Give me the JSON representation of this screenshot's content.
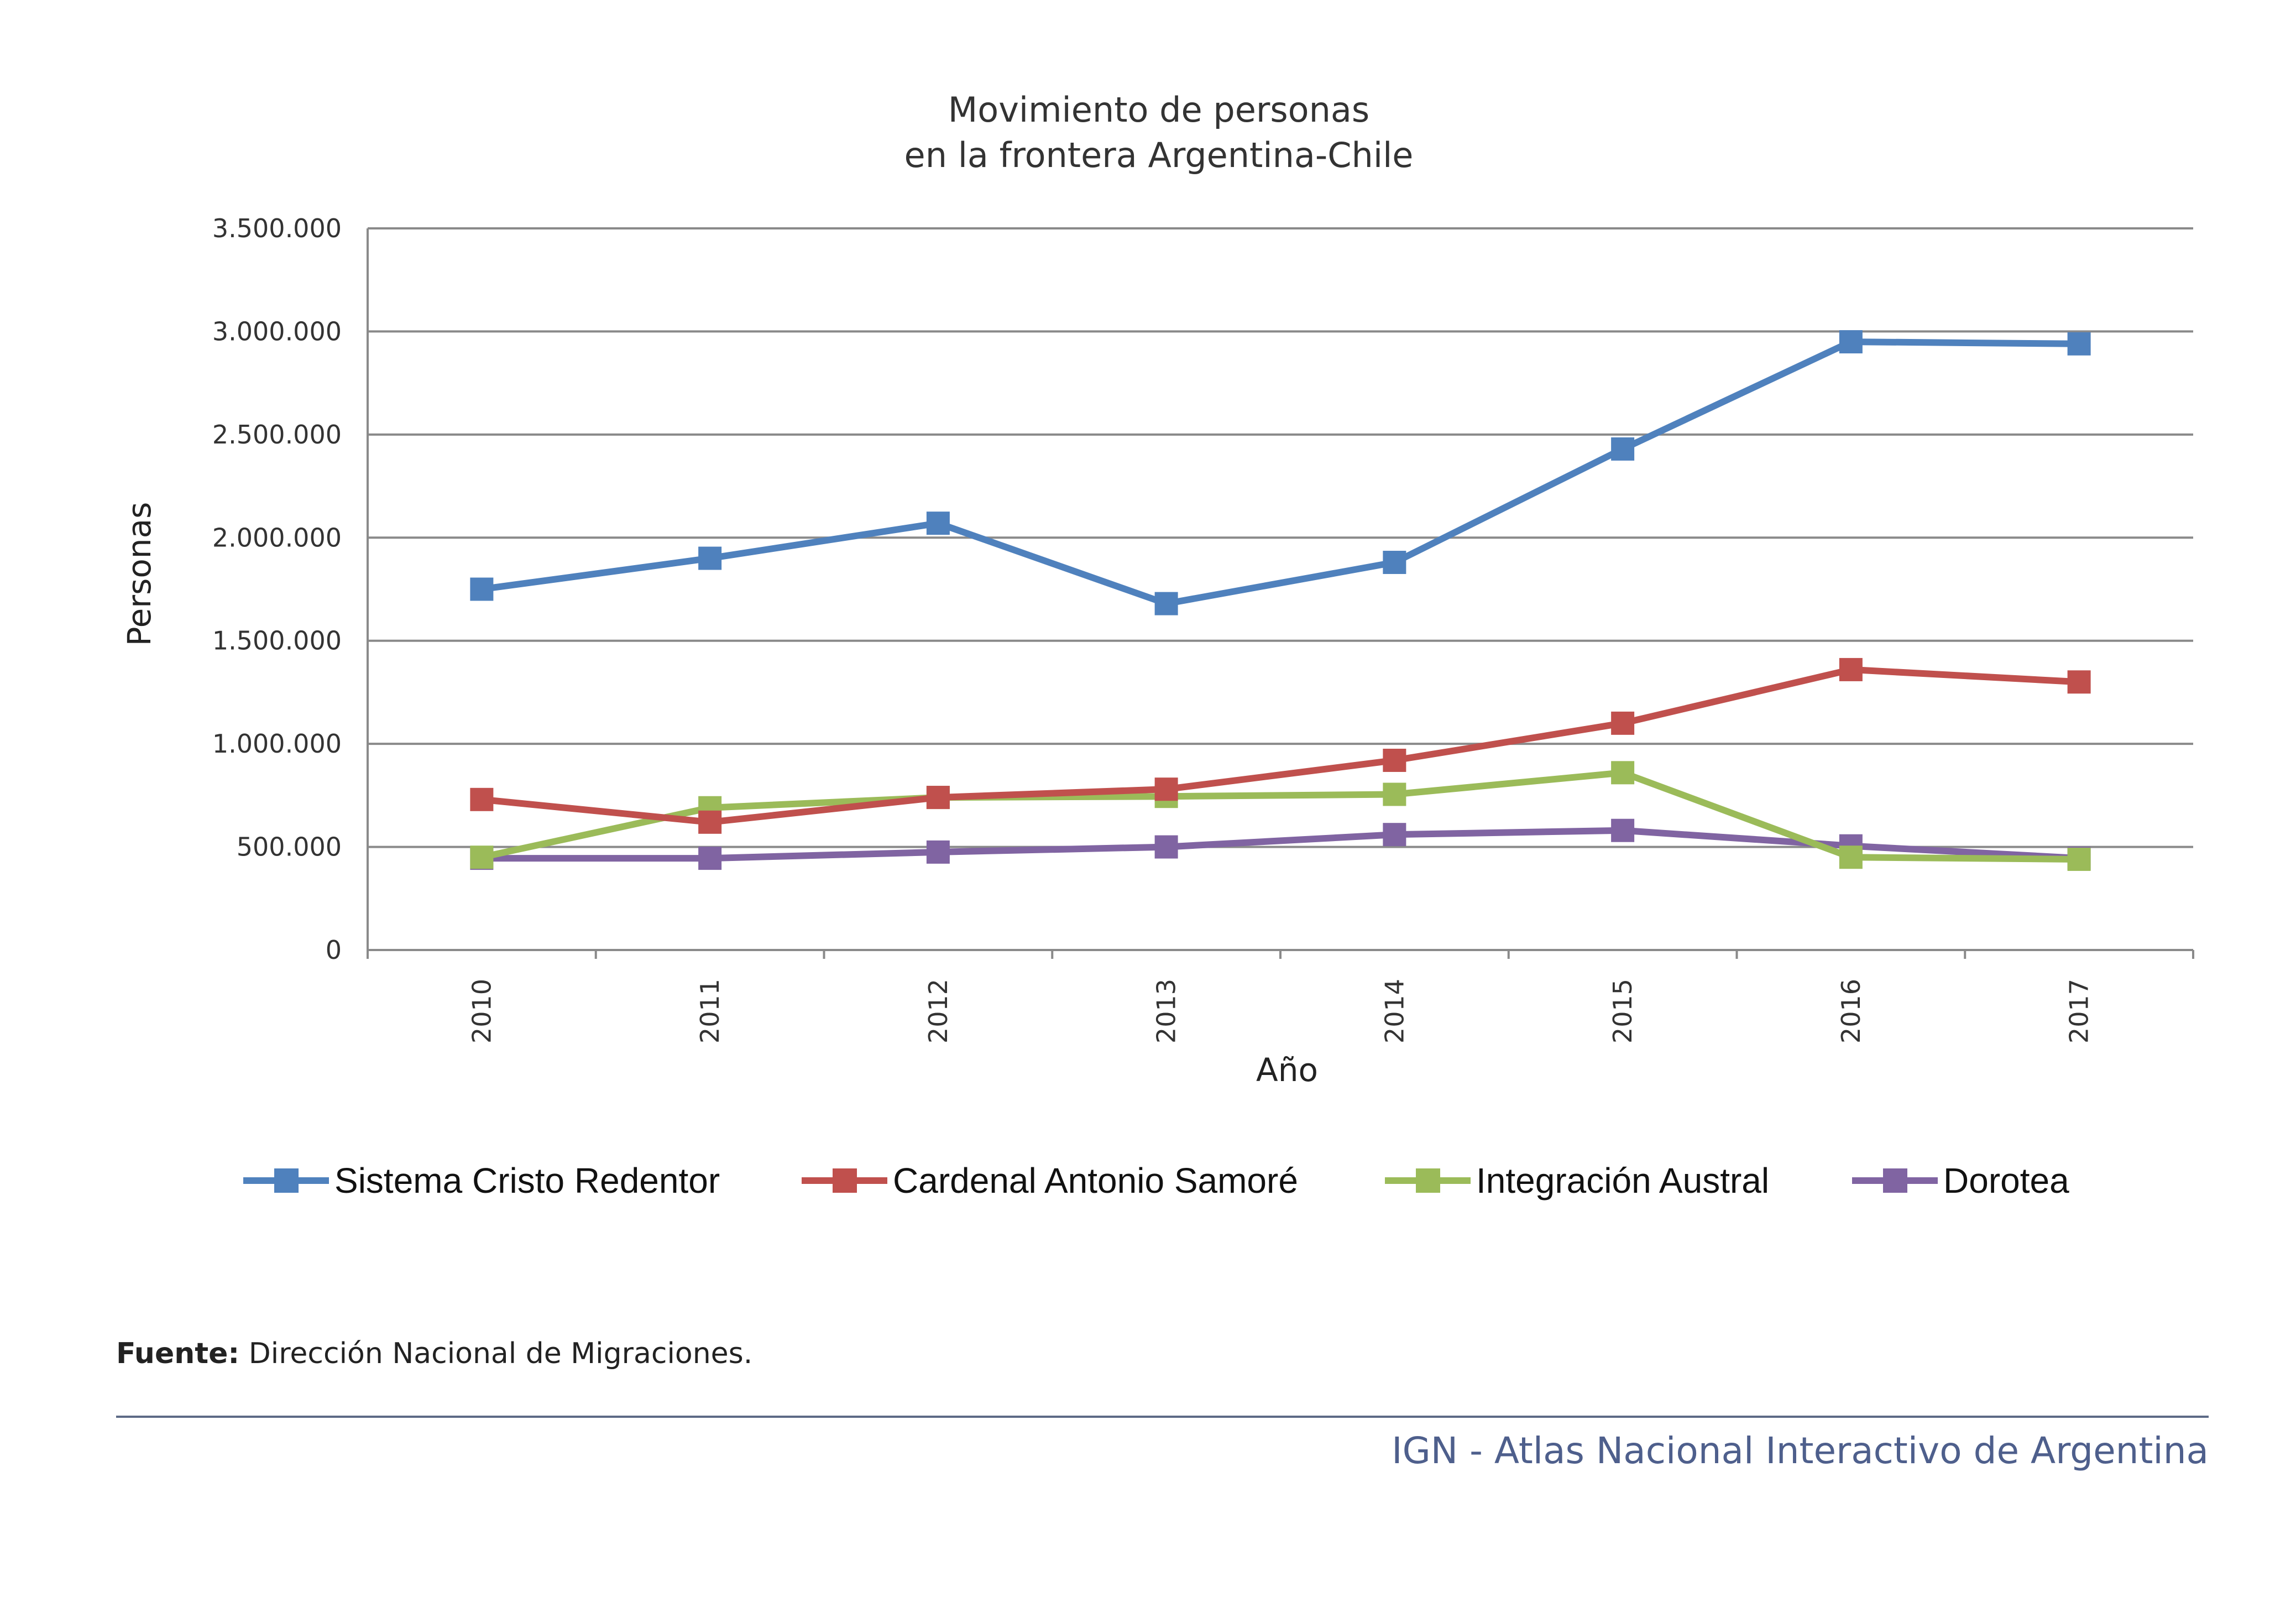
{
  "chart_data": {
    "type": "line",
    "title_lines": [
      "Movimiento de personas",
      "en la frontera Argentina-Chile"
    ],
    "xlabel": "Año",
    "ylabel": "Personas",
    "categories": [
      "2010",
      "2011",
      "2012",
      "2013",
      "2014",
      "2015",
      "2016",
      "2017"
    ],
    "ylim": [
      0,
      3500000
    ],
    "yticks": [
      0,
      500000,
      1000000,
      1500000,
      2000000,
      2500000,
      3000000,
      3500000
    ],
    "ytick_labels": [
      "0",
      "500.000",
      "1.000.000",
      "1.500.000",
      "2.000.000",
      "2.500.000",
      "3.000.000",
      "3.500.000"
    ],
    "grid": true,
    "legend_position": "bottom",
    "series": [
      {
        "name": "Sistema Cristo Redentor",
        "color": "#4f81bd",
        "values": [
          1750000,
          1900000,
          2070000,
          1680000,
          1880000,
          2430000,
          2950000,
          2940000
        ]
      },
      {
        "name": "Cardenal Antonio Samoré",
        "color": "#c0504d",
        "values": [
          730000,
          620000,
          740000,
          780000,
          920000,
          1100000,
          1360000,
          1300000
        ]
      },
      {
        "name": "Integración Austral",
        "color": "#9bbb59",
        "values": [
          450000,
          690000,
          740000,
          745000,
          755000,
          860000,
          450000,
          440000
        ]
      },
      {
        "name": "Dorotea",
        "color": "#8064a2",
        "values": [
          445000,
          445000,
          475000,
          500000,
          560000,
          580000,
          505000,
          445000
        ]
      }
    ]
  },
  "source": {
    "label": "Fuente:",
    "text": "Dirección Nacional de Migraciones."
  },
  "footer": {
    "text": "IGN - Atlas Nacional Interactivo de Argentina",
    "color": "#4e5f8c"
  }
}
